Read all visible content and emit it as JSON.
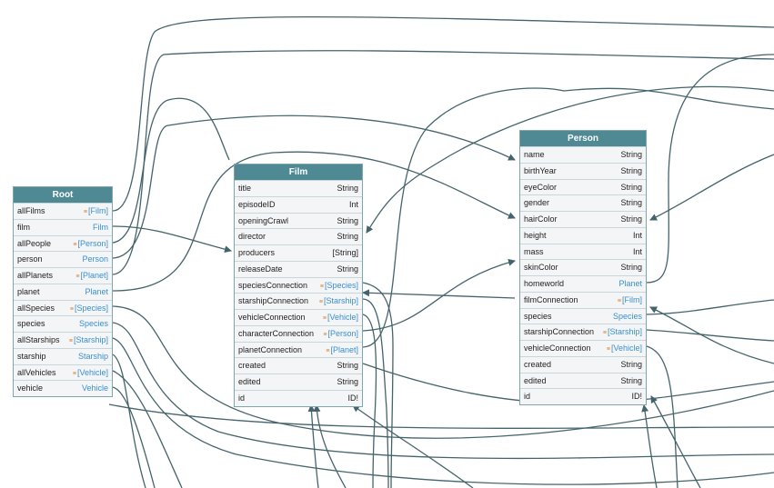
{
  "nodes": {
    "root": {
      "title": "Root",
      "fields": [
        {
          "name": "allFilms",
          "type": "[Film]",
          "link": true,
          "conn": true
        },
        {
          "name": "film",
          "type": "Film",
          "link": true,
          "conn": false
        },
        {
          "name": "allPeople",
          "type": "[Person]",
          "link": true,
          "conn": true
        },
        {
          "name": "person",
          "type": "Person",
          "link": true,
          "conn": false
        },
        {
          "name": "allPlanets",
          "type": "[Planet]",
          "link": true,
          "conn": true
        },
        {
          "name": "planet",
          "type": "Planet",
          "link": true,
          "conn": false
        },
        {
          "name": "allSpecies",
          "type": "[Species]",
          "link": true,
          "conn": true
        },
        {
          "name": "species",
          "type": "Species",
          "link": true,
          "conn": false
        },
        {
          "name": "allStarships",
          "type": "[Starship]",
          "link": true,
          "conn": true
        },
        {
          "name": "starship",
          "type": "Starship",
          "link": true,
          "conn": false
        },
        {
          "name": "allVehicles",
          "type": "[Vehicle]",
          "link": true,
          "conn": true
        },
        {
          "name": "vehicle",
          "type": "Vehicle",
          "link": true,
          "conn": false
        }
      ]
    },
    "film": {
      "title": "Film",
      "fields": [
        {
          "name": "title",
          "type": "String",
          "link": false,
          "conn": false
        },
        {
          "name": "episodeID",
          "type": "Int",
          "link": false,
          "conn": false
        },
        {
          "name": "openingCrawl",
          "type": "String",
          "link": false,
          "conn": false
        },
        {
          "name": "director",
          "type": "String",
          "link": false,
          "conn": false
        },
        {
          "name": "producers",
          "type": "[String]",
          "link": false,
          "conn": false
        },
        {
          "name": "releaseDate",
          "type": "String",
          "link": false,
          "conn": false
        },
        {
          "name": "speciesConnection",
          "type": "[Species]",
          "link": true,
          "conn": true
        },
        {
          "name": "starshipConnection",
          "type": "[Starship]",
          "link": true,
          "conn": true
        },
        {
          "name": "vehicleConnection",
          "type": "[Vehicle]",
          "link": true,
          "conn": true
        },
        {
          "name": "characterConnection",
          "type": "[Person]",
          "link": true,
          "conn": true
        },
        {
          "name": "planetConnection",
          "type": "[Planet]",
          "link": true,
          "conn": true
        },
        {
          "name": "created",
          "type": "String",
          "link": false,
          "conn": false
        },
        {
          "name": "edited",
          "type": "String",
          "link": false,
          "conn": false
        },
        {
          "name": "id",
          "type": "ID!",
          "link": false,
          "conn": false
        }
      ]
    },
    "person": {
      "title": "Person",
      "fields": [
        {
          "name": "name",
          "type": "String",
          "link": false,
          "conn": false
        },
        {
          "name": "birthYear",
          "type": "String",
          "link": false,
          "conn": false
        },
        {
          "name": "eyeColor",
          "type": "String",
          "link": false,
          "conn": false
        },
        {
          "name": "gender",
          "type": "String",
          "link": false,
          "conn": false
        },
        {
          "name": "hairColor",
          "type": "String",
          "link": false,
          "conn": false
        },
        {
          "name": "height",
          "type": "Int",
          "link": false,
          "conn": false
        },
        {
          "name": "mass",
          "type": "Int",
          "link": false,
          "conn": false
        },
        {
          "name": "skinColor",
          "type": "String",
          "link": false,
          "conn": false
        },
        {
          "name": "homeworld",
          "type": "Planet",
          "link": true,
          "conn": false
        },
        {
          "name": "filmConnection",
          "type": "[Film]",
          "link": true,
          "conn": true
        },
        {
          "name": "species",
          "type": "Species",
          "link": true,
          "conn": false
        },
        {
          "name": "starshipConnection",
          "type": "[Starship]",
          "link": true,
          "conn": true
        },
        {
          "name": "vehicleConnection",
          "type": "[Vehicle]",
          "link": true,
          "conn": true
        },
        {
          "name": "created",
          "type": "String",
          "link": false,
          "conn": false
        },
        {
          "name": "edited",
          "type": "String",
          "link": false,
          "conn": false
        },
        {
          "name": "id",
          "type": "ID!",
          "link": false,
          "conn": false
        }
      ]
    }
  },
  "colors": {
    "header": "#4f8a94",
    "edge": "#44646b",
    "link_type": "#3b8fd1",
    "connection_icon": "#e07a1f"
  },
  "icons": {
    "connection": "connection-icon"
  }
}
